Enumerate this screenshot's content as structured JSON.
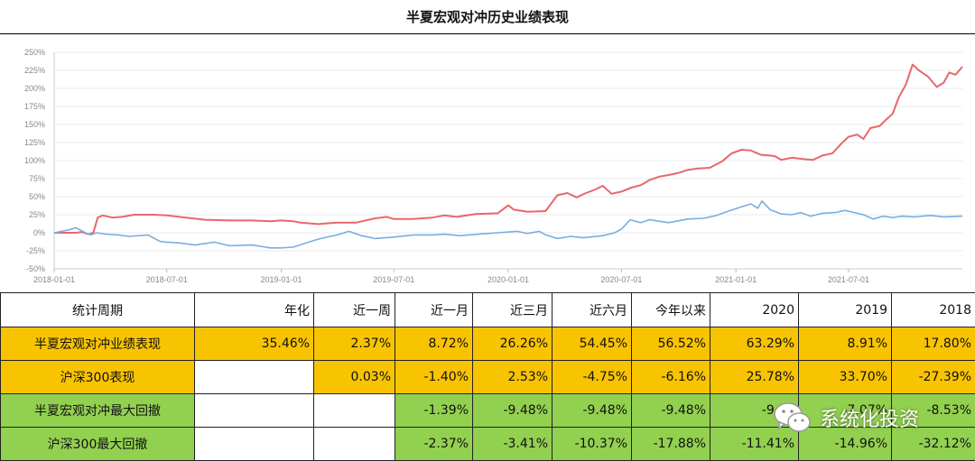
{
  "title": "半夏宏观对冲历史业绩表现",
  "chart_data": {
    "type": "line",
    "y_ticks": [
      "250%",
      "225%",
      "200%",
      "175%",
      "150%",
      "125%",
      "100%",
      "75%",
      "50%",
      "25%",
      "0%",
      "-25%",
      "-50%"
    ],
    "x_ticks": [
      "2018-01-01",
      "2018-07-01",
      "2019-01-01",
      "2019-07-01",
      "2020-01-01",
      "2020-07-01",
      "2021-01-01",
      "2021-07-01"
    ],
    "ylim": [
      -50,
      250
    ],
    "grid": true,
    "series": [
      {
        "color": "#e8676b",
        "points": [
          [
            "2018-01-01",
            0
          ],
          [
            "2018-01-20",
            0
          ],
          [
            "2018-02-05",
            0
          ],
          [
            "2018-02-14",
            1
          ],
          [
            "2018-02-25",
            -2
          ],
          [
            "2018-03-05",
            0
          ],
          [
            "2018-03-12",
            21
          ],
          [
            "2018-03-20",
            24
          ],
          [
            "2018-04-05",
            21
          ],
          [
            "2018-04-20",
            22
          ],
          [
            "2018-05-10",
            25
          ],
          [
            "2018-06-10",
            25
          ],
          [
            "2018-07-01",
            24
          ],
          [
            "2018-08-01",
            21
          ],
          [
            "2018-09-01",
            18
          ],
          [
            "2018-10-15",
            17
          ],
          [
            "2018-11-15",
            17
          ],
          [
            "2018-12-15",
            16
          ],
          [
            "2019-01-01",
            17
          ],
          [
            "2019-01-20",
            16
          ],
          [
            "2019-02-01",
            14
          ],
          [
            "2019-03-01",
            12
          ],
          [
            "2019-04-01",
            14
          ],
          [
            "2019-05-01",
            14
          ],
          [
            "2019-06-01",
            20
          ],
          [
            "2019-06-20",
            22
          ],
          [
            "2019-07-01",
            19
          ],
          [
            "2019-08-01",
            19
          ],
          [
            "2019-09-01",
            21
          ],
          [
            "2019-09-20",
            24
          ],
          [
            "2019-10-10",
            22
          ],
          [
            "2019-11-10",
            26
          ],
          [
            "2019-12-15",
            27
          ],
          [
            "2020-01-01",
            38
          ],
          [
            "2020-01-10",
            32
          ],
          [
            "2020-02-01",
            29
          ],
          [
            "2020-03-01",
            30
          ],
          [
            "2020-03-20",
            52
          ],
          [
            "2020-04-05",
            55
          ],
          [
            "2020-04-20",
            49
          ],
          [
            "2020-05-05",
            55
          ],
          [
            "2020-05-20",
            60
          ],
          [
            "2020-06-01",
            65
          ],
          [
            "2020-06-15",
            54
          ],
          [
            "2020-07-01",
            57
          ],
          [
            "2020-07-15",
            62
          ],
          [
            "2020-08-01",
            66
          ],
          [
            "2020-08-15",
            73
          ],
          [
            "2020-09-01",
            78
          ],
          [
            "2020-09-15",
            80
          ],
          [
            "2020-10-01",
            83
          ],
          [
            "2020-10-15",
            87
          ],
          [
            "2020-11-01",
            89
          ],
          [
            "2020-11-20",
            90
          ],
          [
            "2020-12-10",
            99
          ],
          [
            "2020-12-25",
            110
          ],
          [
            "2021-01-10",
            115
          ],
          [
            "2021-01-25",
            114
          ],
          [
            "2021-02-10",
            108
          ],
          [
            "2021-02-25",
            107
          ],
          [
            "2021-03-05",
            106
          ],
          [
            "2021-03-15",
            101
          ],
          [
            "2021-04-01",
            104
          ],
          [
            "2021-04-20",
            102
          ],
          [
            "2021-05-05",
            101
          ],
          [
            "2021-05-20",
            107
          ],
          [
            "2021-06-05",
            110
          ],
          [
            "2021-06-20",
            124
          ],
          [
            "2021-07-01",
            133
          ],
          [
            "2021-07-15",
            136
          ],
          [
            "2021-07-25",
            130
          ],
          [
            "2021-08-05",
            145
          ],
          [
            "2021-08-20",
            148
          ],
          [
            "2021-09-01",
            158
          ],
          [
            "2021-09-10",
            165
          ],
          [
            "2021-09-20",
            188
          ],
          [
            "2021-10-01",
            205
          ],
          [
            "2021-10-12",
            233
          ],
          [
            "2021-10-22",
            225
          ],
          [
            "2021-11-05",
            217
          ],
          [
            "2021-11-20",
            202
          ],
          [
            "2021-12-01",
            208
          ],
          [
            "2021-12-10",
            222
          ],
          [
            "2021-12-20",
            219
          ],
          [
            "2021-12-31",
            230
          ]
        ]
      },
      {
        "color": "#78aee0",
        "points": [
          [
            "2018-01-01",
            0
          ],
          [
            "2018-01-25",
            4
          ],
          [
            "2018-02-05",
            7
          ],
          [
            "2018-02-20",
            0
          ],
          [
            "2018-03-01",
            -3
          ],
          [
            "2018-03-10",
            0
          ],
          [
            "2018-03-25",
            -2
          ],
          [
            "2018-04-15",
            -3
          ],
          [
            "2018-05-01",
            -5
          ],
          [
            "2018-06-01",
            -3
          ],
          [
            "2018-06-20",
            -12
          ],
          [
            "2018-07-01",
            -13
          ],
          [
            "2018-07-20",
            -14
          ],
          [
            "2018-08-15",
            -17
          ],
          [
            "2018-09-15",
            -13
          ],
          [
            "2018-10-10",
            -18
          ],
          [
            "2018-11-15",
            -17
          ],
          [
            "2018-12-15",
            -21
          ],
          [
            "2019-01-01",
            -21
          ],
          [
            "2019-01-20",
            -20
          ],
          [
            "2019-02-10",
            -14
          ],
          [
            "2019-02-25",
            -10
          ],
          [
            "2019-03-10",
            -7
          ],
          [
            "2019-04-01",
            -3
          ],
          [
            "2019-04-20",
            2
          ],
          [
            "2019-05-10",
            -4
          ],
          [
            "2019-06-01",
            -8
          ],
          [
            "2019-07-01",
            -6
          ],
          [
            "2019-08-01",
            -3
          ],
          [
            "2019-09-01",
            -3
          ],
          [
            "2019-09-20",
            -2
          ],
          [
            "2019-10-15",
            -4
          ],
          [
            "2019-11-15",
            -2
          ],
          [
            "2019-12-15",
            0
          ],
          [
            "2020-01-01",
            1
          ],
          [
            "2020-01-15",
            2
          ],
          [
            "2020-02-01",
            -1
          ],
          [
            "2020-02-20",
            2
          ],
          [
            "2020-03-01",
            -3
          ],
          [
            "2020-03-20",
            -8
          ],
          [
            "2020-04-10",
            -5
          ],
          [
            "2020-05-01",
            -7
          ],
          [
            "2020-06-01",
            -4
          ],
          [
            "2020-06-20",
            0
          ],
          [
            "2020-07-01",
            5
          ],
          [
            "2020-07-15",
            18
          ],
          [
            "2020-08-01",
            14
          ],
          [
            "2020-08-15",
            18
          ],
          [
            "2020-09-15",
            14
          ],
          [
            "2020-10-15",
            19
          ],
          [
            "2020-11-10",
            20
          ],
          [
            "2020-12-01",
            24
          ],
          [
            "2020-12-20",
            30
          ],
          [
            "2021-01-10",
            36
          ],
          [
            "2021-01-25",
            40
          ],
          [
            "2021-02-05",
            34
          ],
          [
            "2021-02-12",
            44
          ],
          [
            "2021-02-25",
            32
          ],
          [
            "2021-03-15",
            26
          ],
          [
            "2021-04-01",
            25
          ],
          [
            "2021-04-15",
            28
          ],
          [
            "2021-05-01",
            23
          ],
          [
            "2021-05-20",
            27
          ],
          [
            "2021-06-10",
            28
          ],
          [
            "2021-06-25",
            31
          ],
          [
            "2021-07-10",
            28
          ],
          [
            "2021-07-25",
            25
          ],
          [
            "2021-08-10",
            19
          ],
          [
            "2021-08-25",
            23
          ],
          [
            "2021-09-10",
            21
          ],
          [
            "2021-09-25",
            23
          ],
          [
            "2021-10-15",
            22
          ],
          [
            "2021-11-10",
            24
          ],
          [
            "2021-12-01",
            22
          ],
          [
            "2021-12-31",
            23
          ]
        ]
      }
    ]
  },
  "table": {
    "header": [
      "统计周期",
      "年化",
      "近一周",
      "近一月",
      "近三月",
      "近六月",
      "今年以来",
      "2020",
      "2019",
      "2018"
    ],
    "rows": [
      {
        "bg": "orange",
        "label": "半夏宏观对冲业绩表现",
        "cells": [
          "35.46%",
          "2.37%",
          "8.72%",
          "26.26%",
          "54.45%",
          "56.52%",
          "63.29%",
          "8.91%",
          "17.80%"
        ]
      },
      {
        "bg": "orange",
        "label": "沪深300表现",
        "cells": [
          "",
          "0.03%",
          "-1.40%",
          "2.53%",
          "-4.75%",
          "-6.16%",
          "25.78%",
          "33.70%",
          "-27.39%"
        ]
      },
      {
        "bg": "green",
        "label": "半夏宏观对冲最大回撤",
        "cells": [
          "",
          "",
          "-1.39%",
          "-9.48%",
          "-9.48%",
          "-9.48%",
          "-9.28",
          "-7.07%",
          "-8.53%"
        ]
      },
      {
        "bg": "green",
        "label": "沪深300最大回撤",
        "cells": [
          "",
          "",
          "-2.37%",
          "-3.41%",
          "-10.37%",
          "-17.88%",
          "-11.41%",
          "-14.96%",
          "-32.12%"
        ]
      }
    ]
  },
  "watermark": {
    "text": "系统化投资",
    "icon": "wechat-icon"
  }
}
